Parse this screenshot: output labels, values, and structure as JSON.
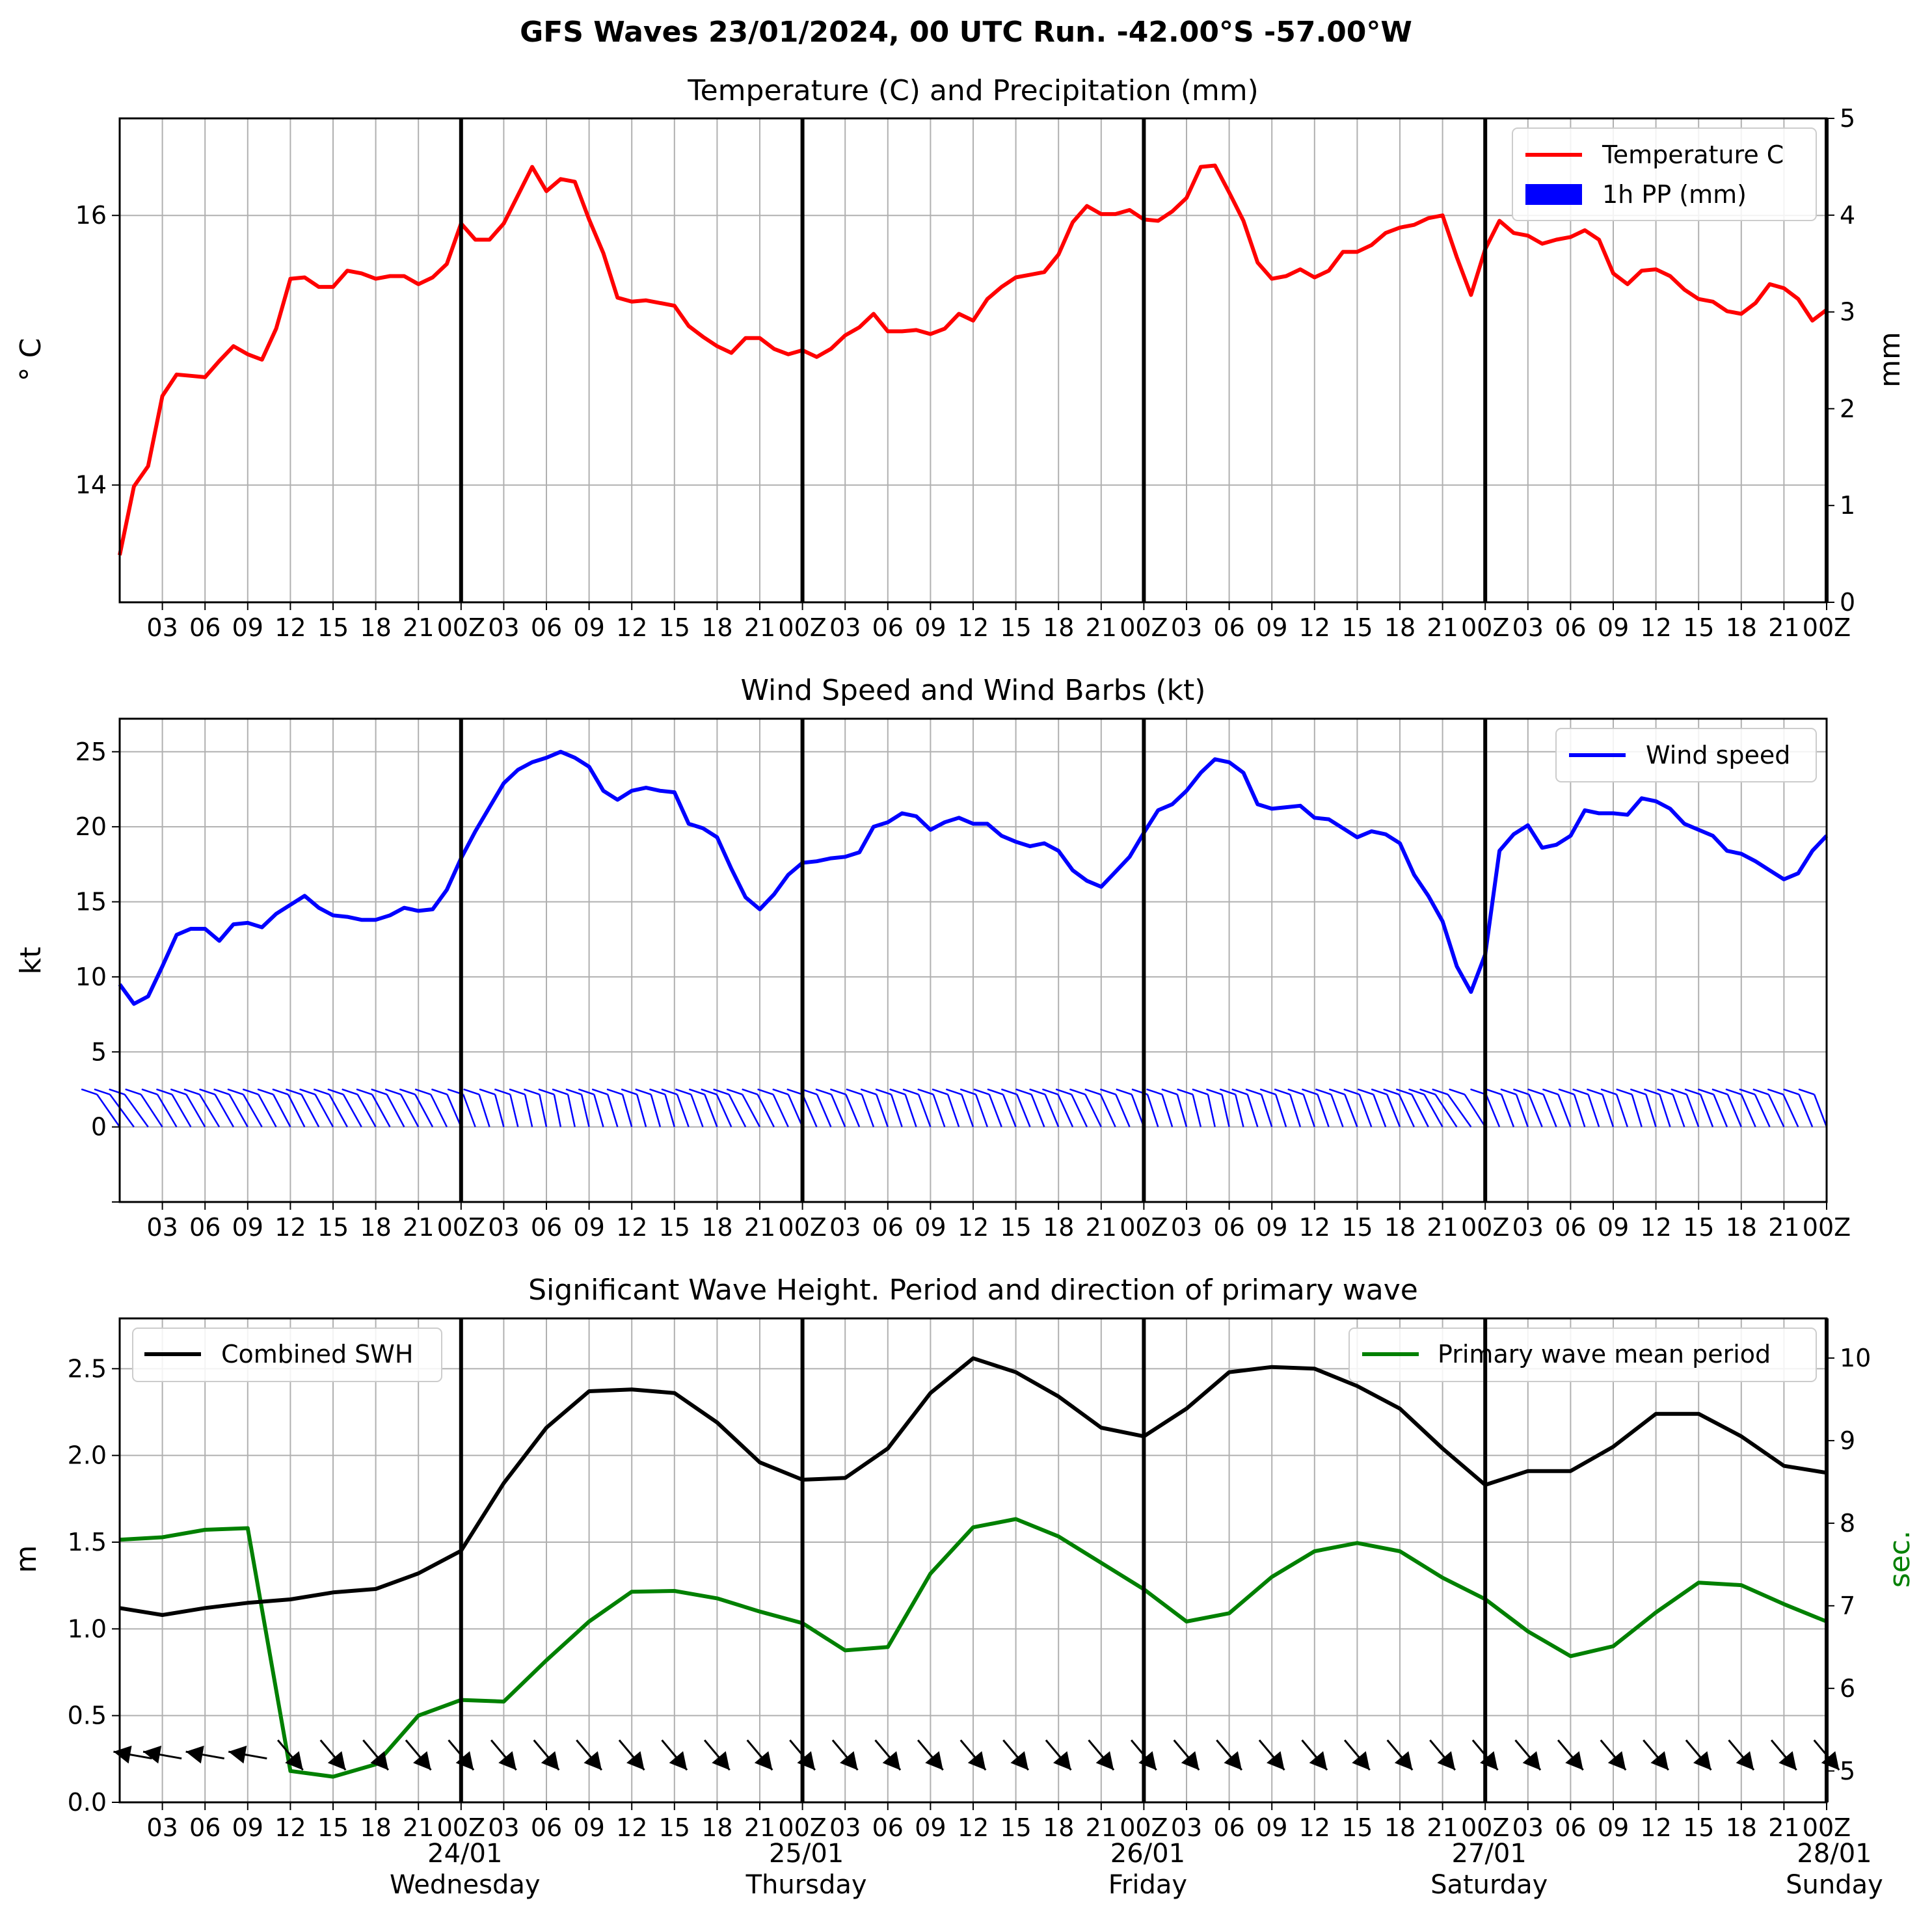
{
  "suptitle": "GFS Waves 23/01/2024, 00 UTC Run. -42.00°S -57.00°W",
  "colors": {
    "temperature": "#ff0000",
    "precip": "#0000ff",
    "wind": "#0000ff",
    "swh": "#000000",
    "period": "#008000",
    "grid": "#b0b0b0"
  },
  "x_axis": {
    "hour_labels": [
      "03",
      "06",
      "09",
      "12",
      "15",
      "18",
      "21",
      "00Z"
    ],
    "date_labels": [
      {
        "date": "24/01",
        "day": "Wednesday"
      },
      {
        "date": "25/01",
        "day": "Thursday"
      },
      {
        "date": "26/01",
        "day": "Friday"
      },
      {
        "date": "27/01",
        "day": "Saturday"
      },
      {
        "date": "28/01",
        "day": "Sunday"
      }
    ],
    "day_boundaries": [
      "24/01 00Z",
      "25/01 00Z",
      "26/01 00Z",
      "27/01 00Z",
      "28/01 00Z"
    ]
  },
  "chart_data": [
    {
      "type": "line",
      "title": "Temperature (C) and Precipitation (mm)",
      "ylabel": "$^\\circ$C",
      "ylabel_display": "° C",
      "y2label": "mm",
      "ylim": [
        13.13,
        16.72
      ],
      "yticks": [
        14,
        16
      ],
      "y2lim": [
        0,
        5
      ],
      "y2ticks": [
        0,
        1,
        2,
        3,
        4,
        5
      ],
      "x_unit": "hours from 23/01/2024 00 UTC",
      "x_step_hours": 1,
      "xlim": [
        0,
        120
      ],
      "legend": {
        "position": "top-right",
        "entries": [
          "Temperature C",
          "1h PP (mm)"
        ]
      },
      "series": [
        {
          "name": "Temperature C",
          "values": [
            13.48,
            13.99,
            14.14,
            14.66,
            14.82,
            14.81,
            14.8,
            14.92,
            15.03,
            14.97,
            14.93,
            15.16,
            15.53,
            15.54,
            15.47,
            15.47,
            15.59,
            15.57,
            15.53,
            15.55,
            15.55,
            15.49,
            15.54,
            15.64,
            15.94,
            15.82,
            15.82,
            15.94,
            16.15,
            16.36,
            16.18,
            16.27,
            16.25,
            15.97,
            15.72,
            15.39,
            15.36,
            15.37,
            15.35,
            15.33,
            15.18,
            15.1,
            15.03,
            14.98,
            15.09,
            15.09,
            15.01,
            14.97,
            15.0,
            14.95,
            15.01,
            15.11,
            15.17,
            15.27,
            15.14,
            15.14,
            15.15,
            15.12,
            15.16,
            15.27,
            15.22,
            15.38,
            15.47,
            15.54,
            15.56,
            15.58,
            15.71,
            15.95,
            16.07,
            16.01,
            16.01,
            16.04,
            15.97,
            15.96,
            16.03,
            16.13,
            16.36,
            16.37,
            16.17,
            15.96,
            15.65,
            15.53,
            15.55,
            15.6,
            15.54,
            15.59,
            15.73,
            15.73,
            15.78,
            15.87,
            15.91,
            15.93,
            15.98,
            16.0,
            15.69,
            15.41,
            15.75,
            15.96,
            15.87,
            15.85,
            15.79,
            15.82,
            15.84,
            15.89,
            15.82,
            15.57,
            15.49,
            15.59,
            15.6,
            15.55,
            15.45,
            15.38,
            15.36,
            15.29,
            15.27,
            15.35,
            15.49,
            15.46,
            15.38,
            15.22,
            15.3
          ]
        },
        {
          "name": "1h PP (mm)",
          "values": []
        }
      ]
    },
    {
      "type": "line",
      "title": "Wind Speed and Wind Barbs (kt)",
      "ylabel": "kt",
      "ylim": [
        -5,
        27.2
      ],
      "yticks": [
        0,
        5,
        10,
        15,
        20,
        25
      ],
      "x_unit": "hours from 23/01/2024 00 UTC",
      "x_step_hours": 1,
      "xlim": [
        0,
        120
      ],
      "legend": {
        "position": "top-right",
        "entries": [
          "Wind speed"
        ]
      },
      "barbs": {
        "baseline_kt": 0,
        "description": "wind barbs drawn every hour along y = 0"
      },
      "series": [
        {
          "name": "Wind speed",
          "values": [
            9.5,
            8.2,
            8.7,
            10.7,
            12.8,
            13.2,
            13.2,
            12.4,
            13.5,
            13.6,
            13.3,
            14.2,
            14.8,
            15.4,
            14.6,
            14.1,
            14.0,
            13.8,
            13.8,
            14.1,
            14.6,
            14.4,
            14.5,
            15.8,
            17.9,
            19.7,
            21.3,
            22.9,
            23.8,
            24.3,
            24.6,
            25.0,
            24.6,
            24.0,
            22.4,
            21.8,
            22.4,
            22.6,
            22.4,
            22.3,
            20.2,
            19.9,
            19.3,
            17.2,
            15.3,
            14.5,
            15.5,
            16.8,
            17.6,
            17.7,
            17.9,
            18.0,
            18.3,
            20.0,
            20.3,
            20.9,
            20.7,
            19.8,
            20.3,
            20.6,
            20.2,
            20.2,
            19.4,
            19.0,
            18.7,
            18.9,
            18.4,
            17.1,
            16.4,
            16.0,
            17.0,
            18.0,
            19.6,
            21.1,
            21.5,
            22.4,
            23.6,
            24.5,
            24.3,
            23.6,
            21.5,
            21.2,
            21.3,
            21.4,
            20.6,
            20.5,
            19.9,
            19.3,
            19.7,
            19.5,
            18.9,
            16.8,
            15.4,
            13.7,
            10.7,
            9.0,
            11.5,
            18.4,
            19.5,
            20.1,
            18.6,
            18.8,
            19.4,
            21.1,
            20.9,
            20.9,
            20.8,
            21.9,
            21.7,
            21.2,
            20.2,
            19.8,
            19.4,
            18.4,
            18.2,
            17.7,
            17.1,
            16.5,
            16.9,
            18.4,
            19.4
          ]
        }
      ]
    },
    {
      "type": "line",
      "title": "Significant Wave Height. Period and direction of primary wave",
      "ylabel": "m",
      "y2label": "sec.",
      "ylim": [
        0,
        2.79
      ],
      "yticks": [
        0.0,
        0.5,
        1.0,
        1.5,
        2.0,
        2.5
      ],
      "yticklabels": [
        "0.0",
        "0.5",
        "1.0",
        "1.5",
        "2.0",
        "2.5"
      ],
      "y2lim": [
        4.62,
        10.48
      ],
      "y2ticks": [
        5,
        6,
        7,
        8,
        9,
        10
      ],
      "x_unit": "hours from 23/01/2024 00 UTC",
      "x_step_hours": 3,
      "xlim": [
        0,
        120
      ],
      "legend": [
        {
          "position": "top-left",
          "entries": [
            "Combined SWH"
          ]
        },
        {
          "position": "top-right",
          "entries": [
            "Primary wave mean period"
          ]
        }
      ],
      "direction_arrows": {
        "baseline_m": 0.22,
        "description": "primary wave direction arrows every 3 hours"
      },
      "series": [
        {
          "name": "Combined SWH",
          "axis": "left",
          "values": [
            1.12,
            1.08,
            1.12,
            1.15,
            1.17,
            1.21,
            1.23,
            1.32,
            1.45,
            1.84,
            2.16,
            2.37,
            2.38,
            2.36,
            2.19,
            1.96,
            1.86,
            1.87,
            2.04,
            2.36,
            2.56,
            2.48,
            2.34,
            2.16,
            2.11,
            2.27,
            2.48,
            2.51,
            2.5,
            2.4,
            2.27,
            2.04,
            1.83,
            1.91,
            1.91,
            2.05,
            2.24,
            2.24,
            2.11,
            1.94,
            1.9
          ]
        },
        {
          "name": "Primary wave mean period",
          "axis": "right",
          "values": [
            7.8,
            7.83,
            7.92,
            7.94,
            5.0,
            4.93,
            5.08,
            5.67,
            5.86,
            5.84,
            6.34,
            6.81,
            7.17,
            7.18,
            7.09,
            6.93,
            6.79,
            6.46,
            6.5,
            7.39,
            7.95,
            8.05,
            7.84,
            7.52,
            7.2,
            6.81,
            6.91,
            7.35,
            7.66,
            7.76,
            7.66,
            7.34,
            7.08,
            6.69,
            6.39,
            6.51,
            6.92,
            7.28,
            7.25,
            7.02,
            6.81
          ]
        }
      ]
    }
  ]
}
